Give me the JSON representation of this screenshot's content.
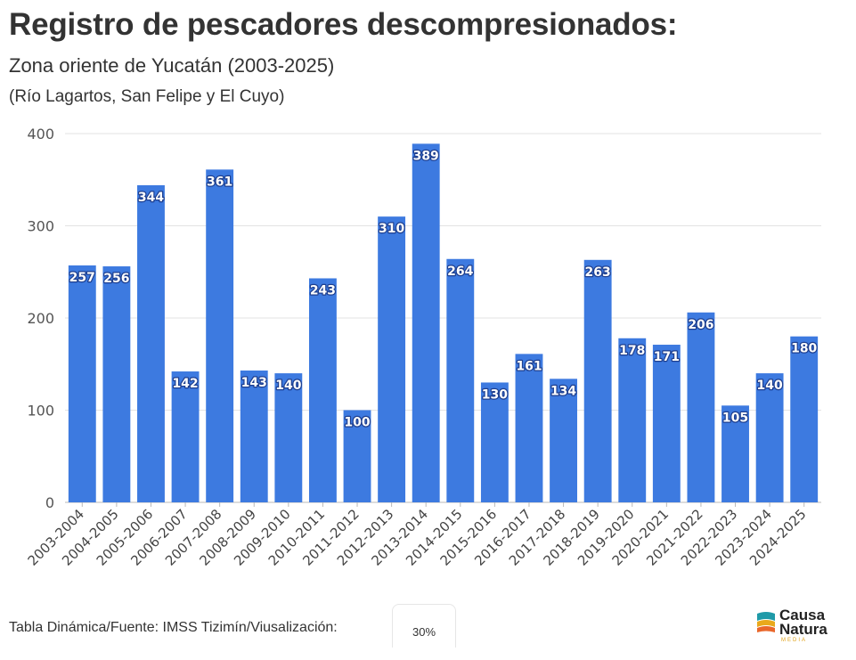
{
  "header": {
    "title": "Registro de pescadores descompresionados:",
    "subtitle": "Zona oriente de Yucatán (2003-2025)",
    "subtitle2": "(Río Lagartos, San Felipe y El Cuyo)"
  },
  "footer": {
    "source": "Tabla Dinámica/Fuente: IMSS Tizimín/Viusalización:",
    "zoom": "30%"
  },
  "logo": {
    "line1": "Causa",
    "line2": "Natura",
    "line3": "MEDIA",
    "colors": {
      "teal": "#1f9aa8",
      "yellow": "#e9a91c",
      "orange": "#e9672b"
    }
  },
  "colors": {
    "bar": "#3d7ae0",
    "grid": "#e3e3e3",
    "label_outline": "#1e3f8f"
  },
  "chart_data": {
    "type": "bar",
    "title": "Registro de pescadores descompresionados:",
    "xlabel": "",
    "ylabel": "",
    "ylim": [
      0,
      400
    ],
    "yticks": [
      0,
      100,
      200,
      300,
      400
    ],
    "grid": true,
    "categories": [
      "2003-2004",
      "2004-2005",
      "2005-2006",
      "2006-2007",
      "2007-2008",
      "2008-2009",
      "2009-2010",
      "2010-2011",
      "2011-2012",
      "2012-2013",
      "2013-2014",
      "2014-2015",
      "2015-2016",
      "2016-2017",
      "2017-2018",
      "2018-2019",
      "2019-2020",
      "2020-2021",
      "2021-2022",
      "2022-2023",
      "2023-2024",
      "2024-2025"
    ],
    "values": [
      257,
      256,
      344,
      142,
      361,
      143,
      140,
      243,
      100,
      310,
      389,
      264,
      130,
      161,
      134,
      263,
      178,
      171,
      206,
      105,
      140,
      180
    ]
  }
}
